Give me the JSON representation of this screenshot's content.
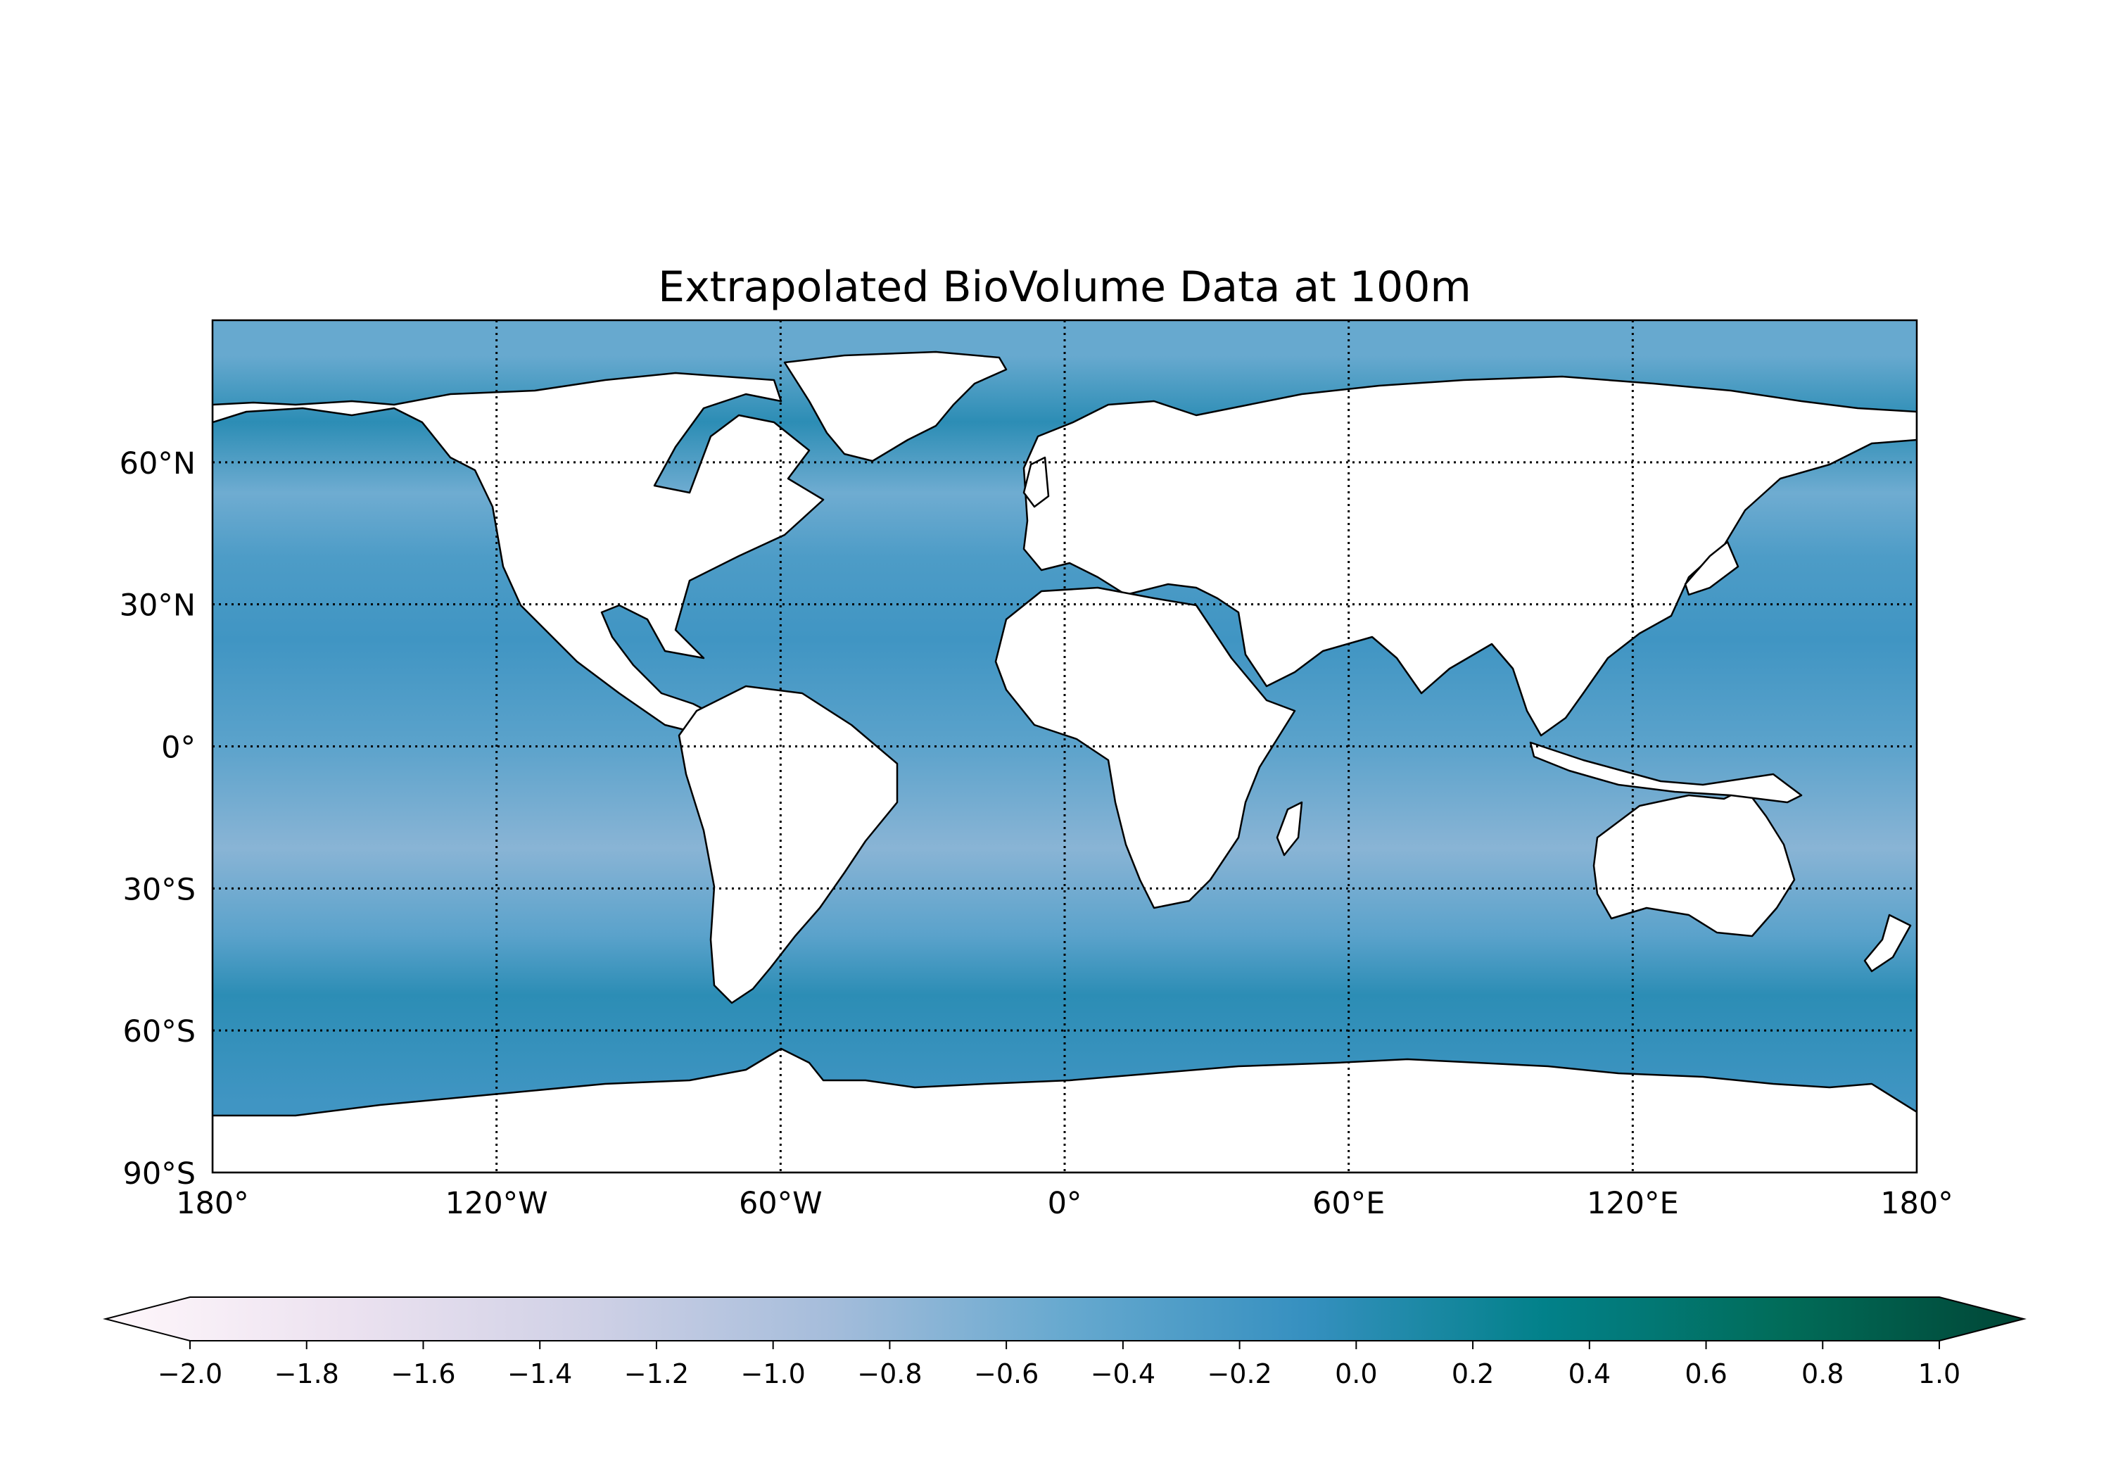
{
  "title": "Extrapolated BioVolume Data at 100m",
  "map": {
    "projection": "PlateCarree",
    "extent": {
      "lon": [
        -180,
        180
      ],
      "lat": [
        -90,
        90
      ]
    },
    "gridlines": "dotted",
    "land_color": "#ffffff",
    "coastline_color": "#000000",
    "x_ticks": [
      {
        "value": -180,
        "label": "180°"
      },
      {
        "value": -120,
        "label": "120°W"
      },
      {
        "value": -60,
        "label": "60°W"
      },
      {
        "value": 0,
        "label": "0°"
      },
      {
        "value": 60,
        "label": "60°E"
      },
      {
        "value": 120,
        "label": "120°E"
      },
      {
        "value": 180,
        "label": "180°"
      }
    ],
    "y_ticks": [
      {
        "value": 60,
        "label": "60°N"
      },
      {
        "value": 30,
        "label": "30°N"
      },
      {
        "value": 0,
        "label": "0°"
      },
      {
        "value": -30,
        "label": "30°S"
      },
      {
        "value": -60,
        "label": "60°S"
      },
      {
        "value": -90,
        "label": "90°S"
      }
    ]
  },
  "colorbar": {
    "colormap": "PuBuGn",
    "range": [
      -2.0,
      1.0
    ],
    "extend": "both",
    "orientation": "horizontal",
    "stops": [
      "#fff7fb",
      "#ece2f0",
      "#d0d1e6",
      "#a6bddb",
      "#67a9cf",
      "#3690c0",
      "#02818a",
      "#016c59",
      "#014636"
    ],
    "ticks": [
      {
        "value": -2.0,
        "label": "−2.0"
      },
      {
        "value": -1.8,
        "label": "−1.8"
      },
      {
        "value": -1.6,
        "label": "−1.6"
      },
      {
        "value": -1.4,
        "label": "−1.4"
      },
      {
        "value": -1.2,
        "label": "−1.2"
      },
      {
        "value": -1.0,
        "label": "−1.0"
      },
      {
        "value": -0.8,
        "label": "−0.8"
      },
      {
        "value": -0.6,
        "label": "−0.6"
      },
      {
        "value": -0.4,
        "label": "−0.4"
      },
      {
        "value": -0.2,
        "label": "−0.2"
      },
      {
        "value": 0.0,
        "label": "0.0"
      },
      {
        "value": 0.2,
        "label": "0.2"
      },
      {
        "value": 0.4,
        "label": "0.4"
      },
      {
        "value": 0.6,
        "label": "0.6"
      },
      {
        "value": 0.8,
        "label": "0.8"
      },
      {
        "value": 1.0,
        "label": "1.0"
      }
    ]
  },
  "ocean_bands": [
    {
      "lat": [
        90,
        75
      ],
      "value": -0.5
    },
    {
      "lat": [
        75,
        62
      ],
      "value": -0.05
    },
    {
      "lat": [
        62,
        45
      ],
      "value": -0.55
    },
    {
      "lat": [
        45,
        35
      ],
      "value": -0.3
    },
    {
      "lat": [
        35,
        10
      ],
      "value": -0.2
    },
    {
      "lat": [
        10,
        -8
      ],
      "value": -0.4
    },
    {
      "lat": [
        -8,
        -35
      ],
      "value": -0.7
    },
    {
      "lat": [
        -35,
        -45
      ],
      "value": -0.4
    },
    {
      "lat": [
        -45,
        -60
      ],
      "value": -0.05
    },
    {
      "lat": [
        -60,
        -90
      ],
      "value": -0.2
    }
  ]
}
